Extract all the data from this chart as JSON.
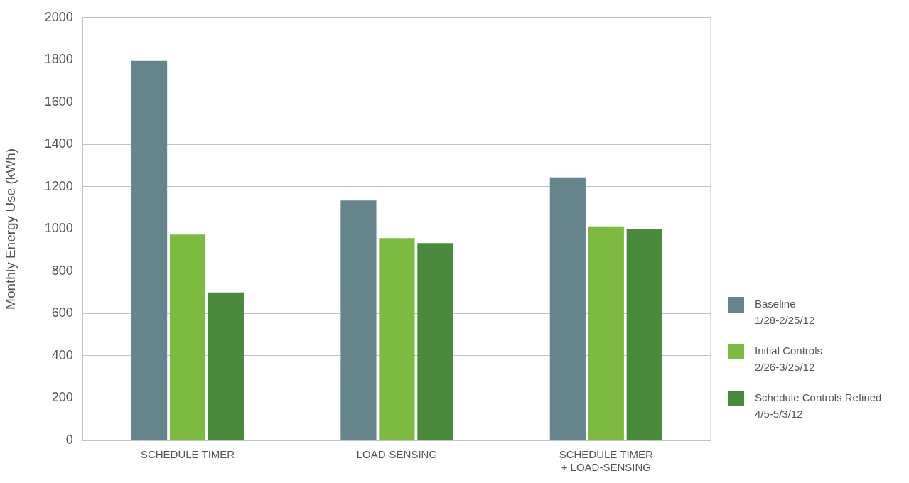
{
  "chart_data": {
    "type": "bar",
    "ylabel": "Monthly Energy Use (kWh)",
    "categories": [
      "SCHEDULE TIMER",
      "LOAD-SENSING",
      "SCHEDULE TIMER\n+ LOAD-SENSING"
    ],
    "series": [
      {
        "name": "Baseline\n1/28-2/25/12",
        "color": "#66848c",
        "values": [
          1795,
          1135,
          1244
        ]
      },
      {
        "name": "Initial Controls\n2/26-3/25/12",
        "color": "#7cba42",
        "values": [
          974,
          957,
          1012
        ]
      },
      {
        "name": "Schedule Controls Refined\n4/5-5/3/12",
        "color": "#4a8a3c",
        "values": [
          700,
          933,
          998
        ]
      }
    ],
    "ylim": [
      0,
      2000
    ],
    "yticks": [
      0,
      200,
      400,
      600,
      800,
      1000,
      1200,
      1400,
      1600,
      1800,
      2000
    ],
    "grid": "y",
    "legend": "right"
  }
}
